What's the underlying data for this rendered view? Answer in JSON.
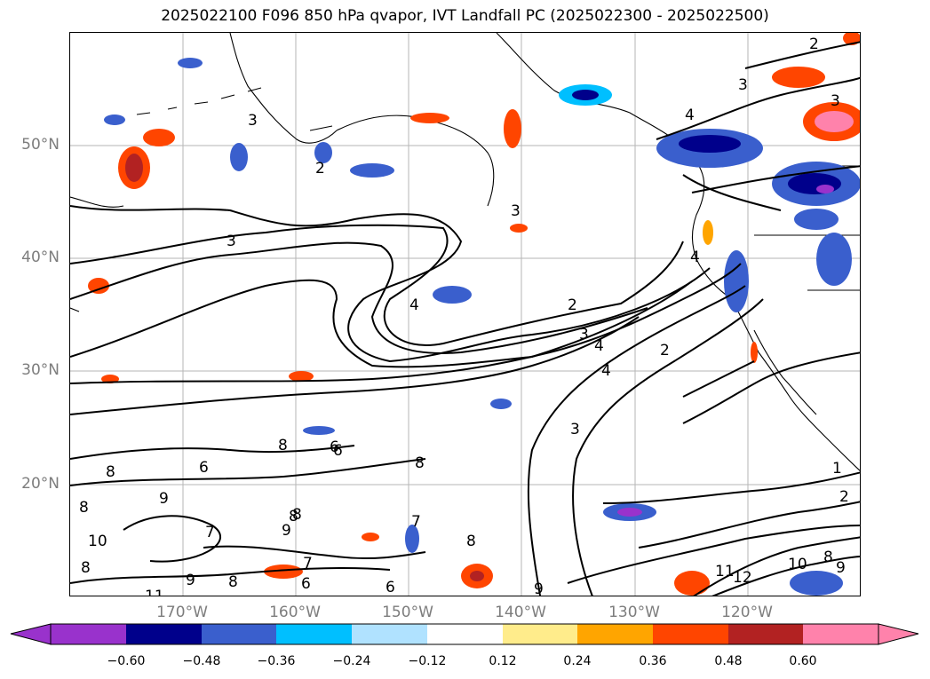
{
  "title": "2025022100 F096 850 hPa qvapor, IVT Landfall PC (2025022300 - 2025022500)",
  "lat_labels": [
    "50°N",
    "40°N",
    "30°N",
    "20°N"
  ],
  "lon_labels": [
    "170°W",
    "160°W",
    "150°W",
    "140°W",
    "130°W",
    "120°W"
  ],
  "colorbar": {
    "colors": [
      "#9932CC",
      "#00008B",
      "#3A5FCD",
      "#00BFFF",
      "#B0E2FF",
      "#FFFFFF",
      "#FFEC8B",
      "#FFA500",
      "#FF4500",
      "#B22222",
      "#FF82AB"
    ],
    "ticks": [
      "−0.60",
      "−0.48",
      "−0.36",
      "−0.24",
      "−0.12",
      "0.12",
      "0.24",
      "0.36",
      "0.48",
      "0.60"
    ]
  },
  "contour_labels": [
    "2",
    "3",
    "3",
    "4",
    "3",
    "2",
    "3",
    "4",
    "4",
    "2",
    "3",
    "1",
    "2",
    "3",
    "4",
    "3",
    "2",
    "4",
    "8",
    "6",
    "6",
    "8",
    "9",
    "8",
    "8",
    "8",
    "9",
    "10",
    "8",
    "7",
    "8",
    "6",
    "8",
    "7",
    "7",
    "9",
    "8",
    "6",
    "6",
    "9",
    "11",
    "10",
    "11",
    "12",
    "9",
    "8"
  ]
}
